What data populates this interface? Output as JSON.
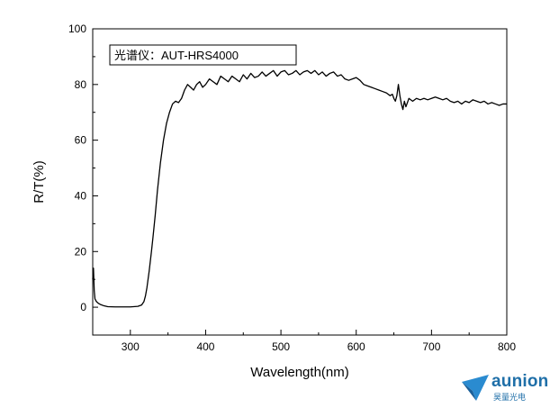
{
  "chart_data": {
    "type": "line",
    "title": "",
    "xlabel": "Wavelength(nm)",
    "ylabel": "R/T(%)",
    "xlim": [
      250,
      800
    ],
    "ylim": [
      -10,
      100
    ],
    "x_ticks": [
      300,
      400,
      500,
      600,
      700,
      800
    ],
    "y_ticks": [
      0,
      20,
      40,
      60,
      80,
      100
    ],
    "legend_text": "光谱仪：AUT-HRS4000",
    "legend_placement": "top-left",
    "grid": false,
    "line_color": "#000000",
    "series": [
      {
        "x": [
          250,
          251,
          252,
          253,
          255,
          257,
          260,
          265,
          270,
          280,
          290,
          300,
          310,
          315,
          318,
          320,
          322,
          325,
          328,
          330,
          333,
          336,
          340,
          344,
          348,
          352,
          356,
          360,
          364,
          368,
          372,
          376,
          380,
          384,
          388,
          392,
          396,
          400,
          405,
          410,
          415,
          420,
          425,
          430,
          435,
          440,
          445,
          450,
          455,
          460,
          465,
          470,
          475,
          480,
          485,
          490,
          495,
          500,
          505,
          510,
          515,
          520,
          525,
          530,
          535,
          540,
          545,
          550,
          555,
          560,
          565,
          570,
          575,
          580,
          585,
          590,
          595,
          600,
          605,
          610,
          615,
          620,
          625,
          630,
          635,
          640,
          645,
          648,
          650,
          652,
          654,
          656,
          658,
          660,
          662,
          664,
          666,
          668,
          670,
          675,
          680,
          685,
          690,
          695,
          700,
          705,
          710,
          715,
          720,
          725,
          730,
          735,
          740,
          745,
          750,
          755,
          760,
          765,
          770,
          775,
          780,
          785,
          790,
          795,
          800
        ],
        "y": [
          10,
          14,
          6,
          3,
          2,
          1.5,
          1,
          0.5,
          0.2,
          0.1,
          0.1,
          0.1,
          0.3,
          0.8,
          2,
          4,
          7,
          13,
          20,
          25,
          33,
          42,
          52,
          60,
          66,
          70,
          73,
          74,
          73.5,
          75,
          78,
          80,
          79,
          78,
          80,
          81,
          79,
          80,
          82,
          81,
          80,
          83,
          82,
          81,
          83,
          82,
          81,
          83.5,
          82,
          84,
          82.5,
          83,
          84.5,
          83,
          84,
          85,
          83,
          84.5,
          85,
          83.5,
          84,
          85,
          83.5,
          84.5,
          85,
          84,
          85,
          83.5,
          84.5,
          83,
          84,
          84.5,
          83,
          83.5,
          82,
          81.5,
          82,
          82.5,
          81.5,
          80,
          79.5,
          79,
          78.5,
          78,
          77.5,
          77,
          76,
          76.5,
          75,
          74,
          76,
          80,
          76,
          73,
          71,
          74,
          72,
          73.5,
          75,
          74,
          75,
          74.5,
          75,
          74.5,
          75,
          75.5,
          75,
          74.5,
          75,
          74,
          73.5,
          74,
          73,
          74,
          73.5,
          74.5,
          74,
          73.5,
          74,
          73,
          73.5,
          73,
          72.5,
          73,
          73
        ]
      }
    ]
  },
  "branding": {
    "logo_word": "aunion",
    "logo_sub": "昊量光电"
  }
}
